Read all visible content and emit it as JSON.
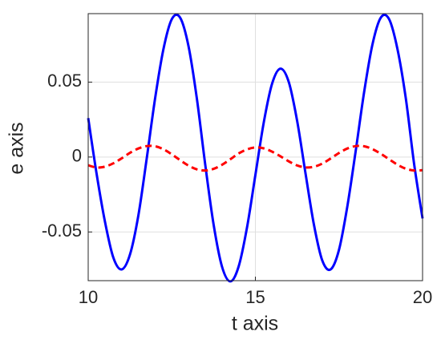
{
  "chart_data": {
    "type": "line",
    "xlabel": "t axis",
    "ylabel": "e axis",
    "x": [
      10,
      10.25,
      10.5,
      10.75,
      11,
      11.25,
      11.5,
      11.75,
      12,
      12.25,
      12.5,
      12.75,
      13,
      13.25,
      13.5,
      13.75,
      14,
      14.25,
      14.5,
      14.75,
      15,
      15.25,
      15.5,
      15.75,
      16,
      16.25,
      16.5,
      16.75,
      17,
      17.25,
      17.5,
      17.75,
      18,
      18.25,
      18.5,
      18.75,
      19,
      19.25,
      19.5,
      19.75,
      20
    ],
    "series": [
      {
        "color": "#0000ff",
        "dash": false,
        "values": [
          0.026,
          -0.011,
          -0.043,
          -0.067,
          -0.075,
          -0.065,
          -0.039,
          -0.001,
          0.039,
          0.072,
          0.092,
          0.093,
          0.074,
          0.039,
          -0.005,
          -0.045,
          -0.073,
          -0.083,
          -0.073,
          -0.047,
          -0.012,
          0.023,
          0.049,
          0.059,
          0.05,
          0.024,
          -0.011,
          -0.045,
          -0.069,
          -0.075,
          -0.062,
          -0.033,
          0.004,
          0.043,
          0.075,
          0.093,
          0.092,
          0.072,
          0.039,
          -0.005,
          -0.041
        ]
      },
      {
        "color": "#ff0000",
        "dash": true,
        "values": [
          -0.0055,
          -0.007,
          -0.0064,
          -0.0042,
          -0.0009,
          0.0028,
          0.0057,
          0.0073,
          0.0072,
          0.0052,
          0.0018,
          -0.0021,
          -0.0057,
          -0.0082,
          -0.009,
          -0.0079,
          -0.0052,
          -0.0015,
          0.0024,
          0.0051,
          0.0064,
          0.0058,
          0.0036,
          0.0005,
          -0.0029,
          -0.0056,
          -0.0069,
          -0.0065,
          -0.0044,
          -0.001,
          0.0027,
          0.0057,
          0.0073,
          0.0072,
          0.0053,
          0.0022,
          -0.0015,
          -0.0051,
          -0.0078,
          -0.009,
          -0.0088
        ]
      }
    ],
    "xlim": [
      10,
      20
    ],
    "xticks": [
      10,
      15,
      20
    ],
    "ylim": [
      -0.0825,
      0.0957
    ],
    "yticks": [
      -0.05,
      0,
      0.05
    ],
    "grid": true
  }
}
